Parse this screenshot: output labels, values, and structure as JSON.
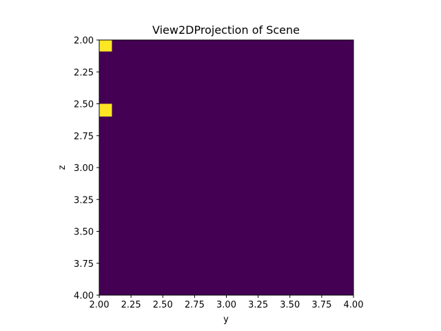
{
  "chart_data": {
    "type": "heatmap",
    "title": "View2DProjection of Scene",
    "xlabel": "y",
    "ylabel": "z",
    "xlim": [
      2.0,
      4.0
    ],
    "ylim": [
      4.0,
      2.0
    ],
    "y_inverted": true,
    "xticks": [
      "2.00",
      "2.25",
      "2.50",
      "2.75",
      "3.00",
      "3.25",
      "3.50",
      "3.75",
      "4.00"
    ],
    "yticks": [
      "2.00",
      "2.25",
      "2.50",
      "2.75",
      "3.00",
      "3.25",
      "3.50",
      "3.75",
      "4.00"
    ],
    "colormap": "viridis",
    "background_color": "#440154",
    "highlight_color": "#fde725",
    "grid": false,
    "cells": [
      {
        "x0": 2.0,
        "x1": 2.1,
        "y0": 2.0,
        "y1": 2.09,
        "value": 1
      },
      {
        "x0": 2.0,
        "x1": 2.1,
        "y0": 2.5,
        "y1": 2.6,
        "value": 1
      }
    ]
  }
}
